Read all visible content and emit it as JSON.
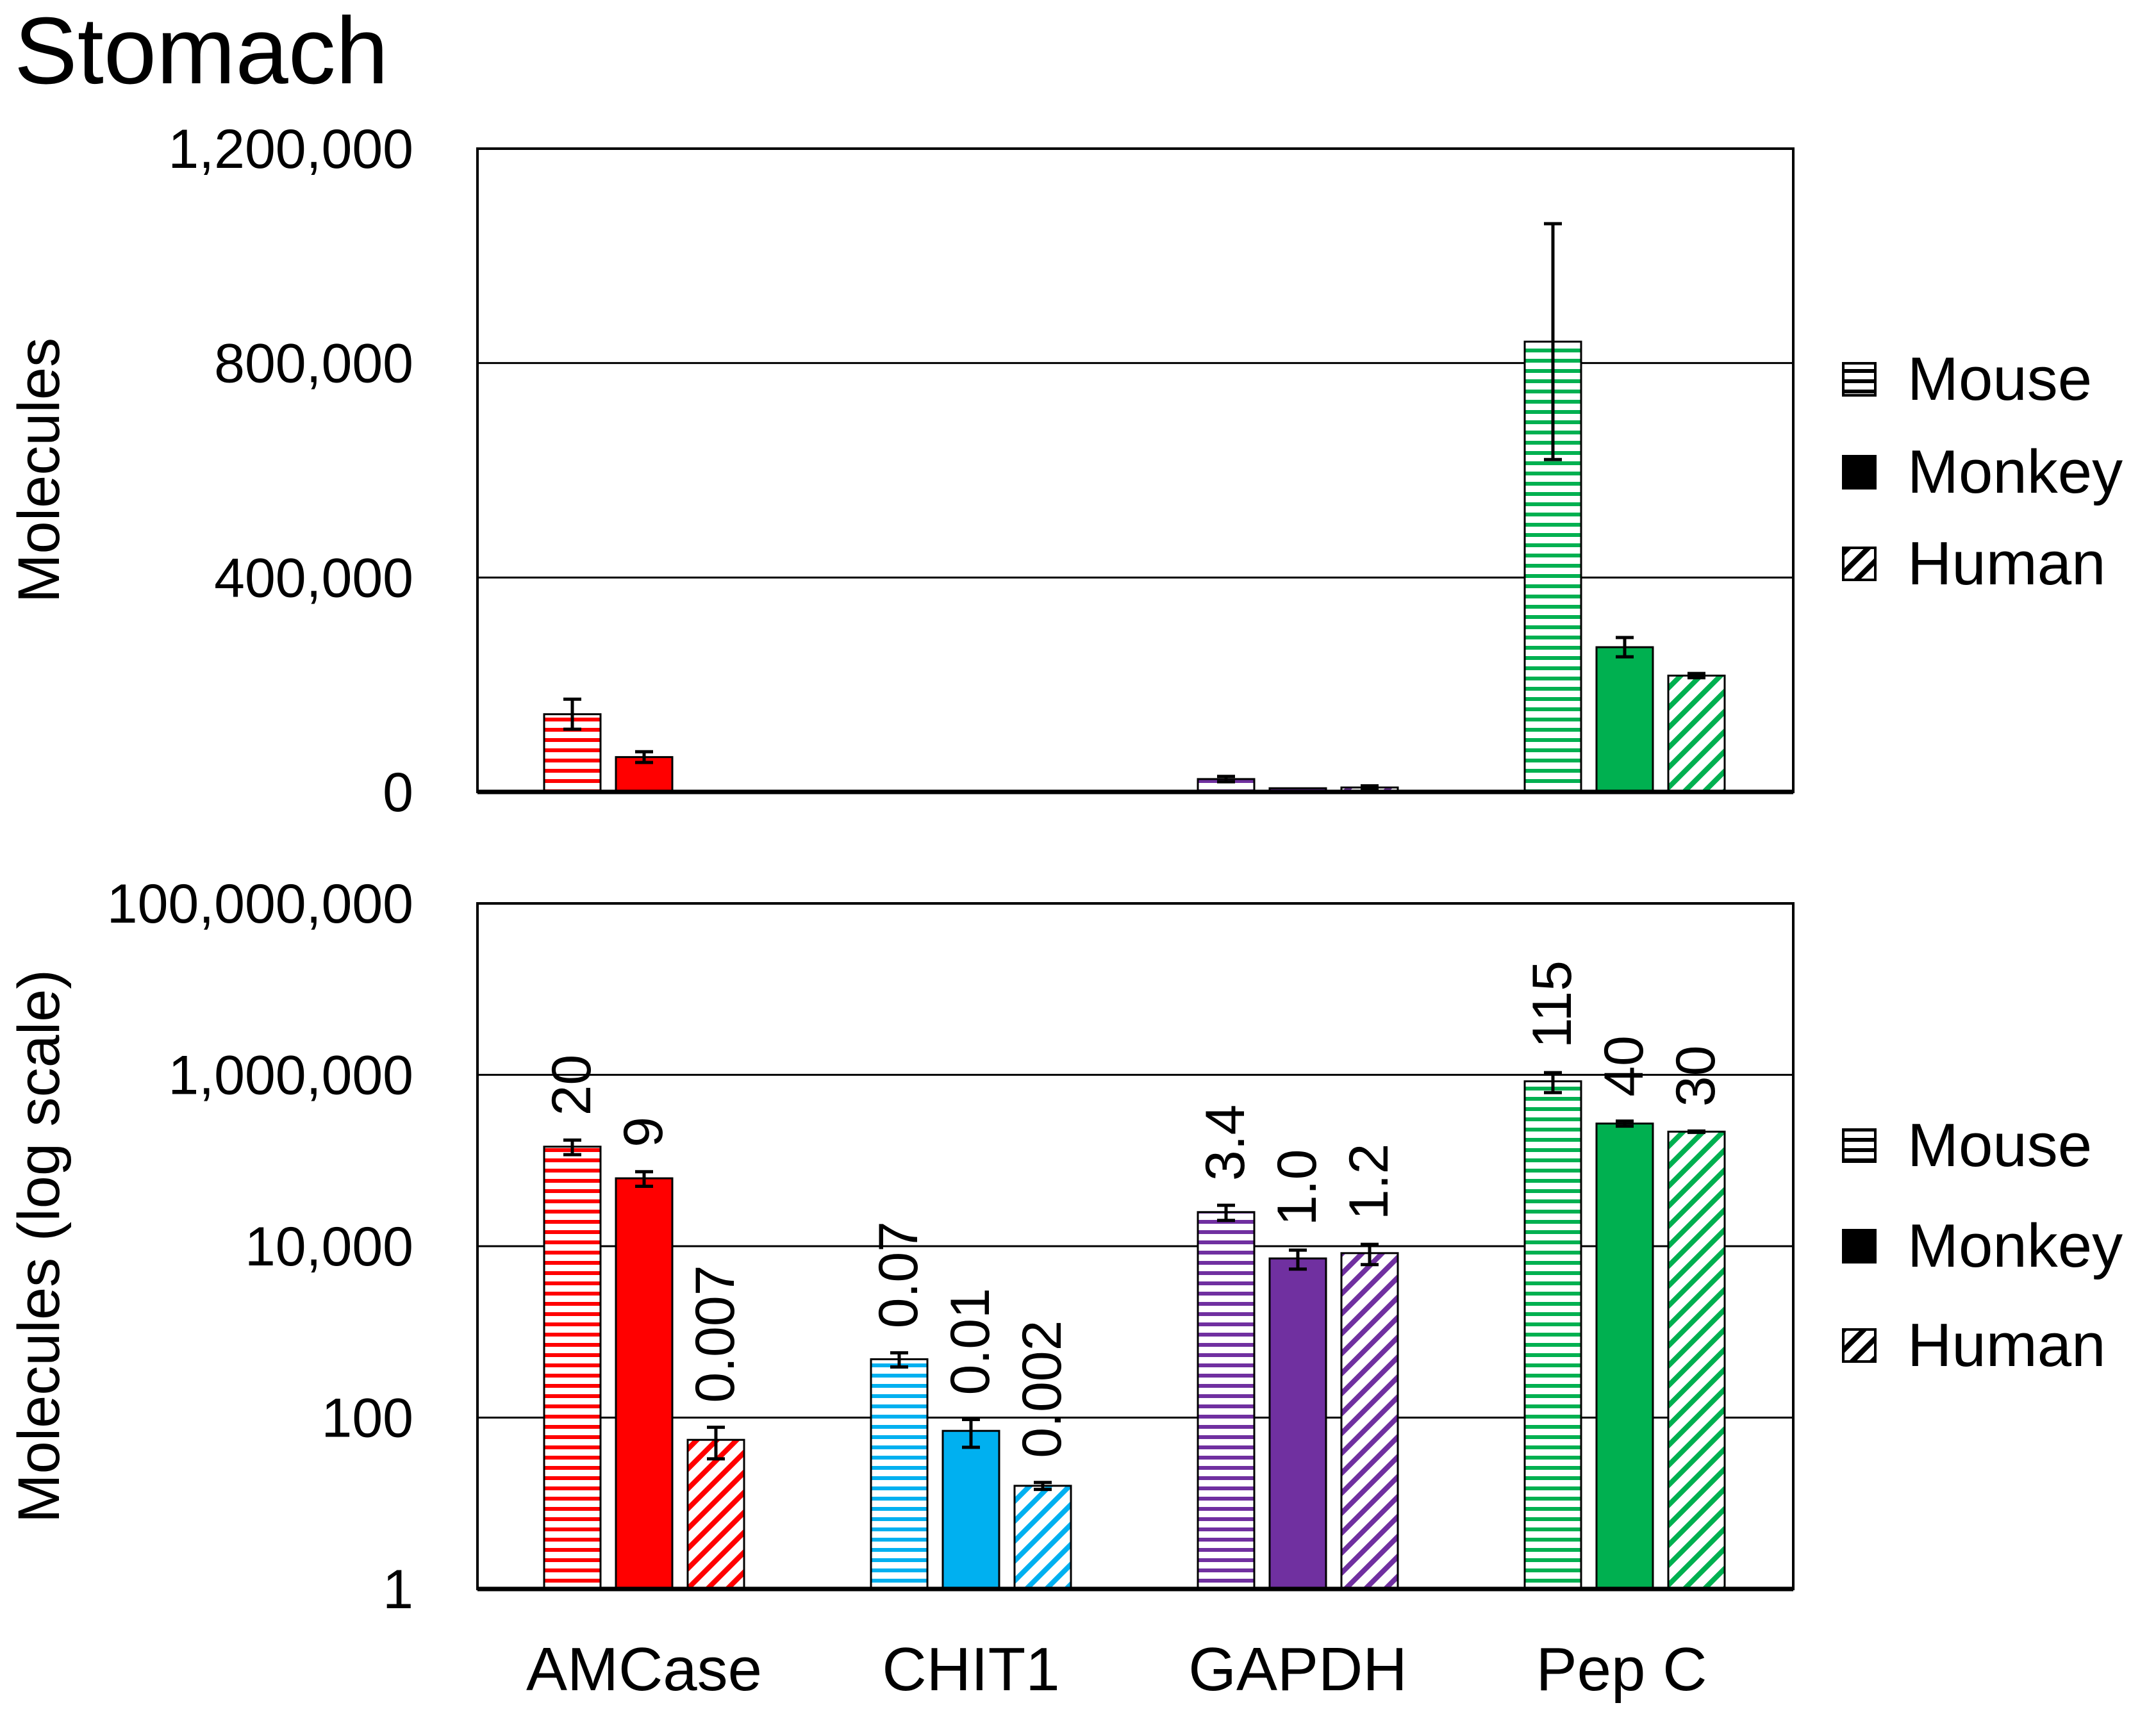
{
  "title": "Stomach",
  "colors": {
    "AMCase": "#ff0000",
    "CHIT1": "#00b0f0",
    "GAPDH": "#7030a0",
    "Pep C": "#00b050",
    "frame": "#000000"
  },
  "chart_data": [
    {
      "id": "top",
      "type": "bar",
      "scale": "linear",
      "ylabel": "Molecules",
      "ylim": [
        0,
        1200000
      ],
      "yticks": [
        {
          "value": 0,
          "label": "0"
        },
        {
          "value": 400000,
          "label": "400,000"
        },
        {
          "value": 800000,
          "label": "800,000"
        },
        {
          "value": 1200000,
          "label": "1,200,000"
        }
      ],
      "gridlines": [
        400000,
        800000
      ],
      "categories": [
        "AMCase",
        "CHIT1",
        "GAPDH",
        "Pep C"
      ],
      "legend": {
        "position": "right",
        "entries": [
          "Mouse",
          "Monkey",
          "Human"
        ]
      },
      "series": [
        {
          "name": "Mouse",
          "pattern": "horizontal",
          "values": [
            145000,
            600,
            24000,
            840000
          ],
          "errors": [
            28000,
            200,
            5000,
            220000
          ]
        },
        {
          "name": "Monkey",
          "pattern": "solid",
          "values": [
            65000,
            80,
            6900,
            270000
          ],
          "errors": [
            10000,
            30,
            1500,
            18000
          ]
        },
        {
          "name": "Human",
          "pattern": "diagonal",
          "values": [
            55,
            16,
            8300,
            217000
          ],
          "errors": [
            20,
            2,
            3000,
            4000
          ]
        }
      ]
    },
    {
      "id": "bottom",
      "type": "bar",
      "scale": "log",
      "ylabel": "Molecules (log scale)",
      "ylim": [
        1,
        100000000
      ],
      "yticks": [
        {
          "value": 1,
          "label": "1"
        },
        {
          "value": 100,
          "label": "100"
        },
        {
          "value": 10000,
          "label": "10,000"
        },
        {
          "value": 1000000,
          "label": "1,000,000"
        },
        {
          "value": 100000000,
          "label": "100,000,000"
        }
      ],
      "gridlines": [
        100,
        10000,
        1000000
      ],
      "categories": [
        "AMCase",
        "CHIT1",
        "GAPDH",
        "Pep C"
      ],
      "legend": {
        "position": "right",
        "entries": [
          "Mouse",
          "Monkey",
          "Human"
        ]
      },
      "series": [
        {
          "name": "Mouse",
          "pattern": "horizontal",
          "values": [
            145000,
            480,
            25000,
            840000
          ],
          "errors": [
            28000,
            90,
            5000,
            220000
          ],
          "annotations": [
            "20",
            "0.07",
            "3.4",
            "115"
          ]
        },
        {
          "name": "Monkey",
          "pattern": "solid",
          "values": [
            62000,
            70,
            7200,
            270000
          ],
          "errors": [
            12000,
            25,
            1800,
            18000
          ],
          "annotations": [
            "9",
            "0.01",
            "1.0",
            "40"
          ]
        },
        {
          "name": "Human",
          "pattern": "diagonal",
          "values": [
            55,
            16,
            8300,
            217000
          ],
          "errors": [
            22,
            1.5,
            2200,
            4000
          ],
          "annotations": [
            "0.007",
            "0.002",
            "1.2",
            "30"
          ]
        }
      ]
    }
  ]
}
